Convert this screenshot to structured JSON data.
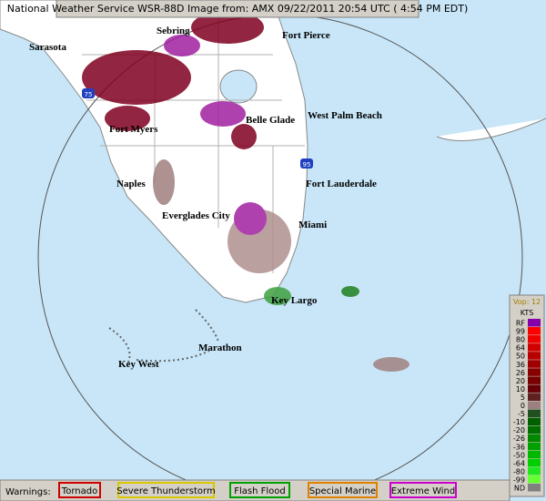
{
  "header": {
    "text": "National Weather Service WSR-88D Image from:  AMX 09/22/2011  20:54 UTC ( 4:54 PM EDT)"
  },
  "map": {
    "cities": [
      "Sarasota",
      "Sebring",
      "Fort Pierce",
      "Fort Myers",
      "Belle Glade",
      "West Palm Beach",
      "Naples",
      "Fort Lauderdale",
      "Everglades City",
      "Miami",
      "Key Largo",
      "Marathon",
      "Key West"
    ],
    "highways": [
      "75",
      "95"
    ]
  },
  "legend": {
    "title": "Vop: 12",
    "unit": "KTS",
    "items": [
      {
        "label": "RF",
        "color": "#8800aa"
      },
      {
        "label": "99",
        "color": "#ff0000"
      },
      {
        "label": "80",
        "color": "#ee0000"
      },
      {
        "label": "64",
        "color": "#d00000"
      },
      {
        "label": "50",
        "color": "#b80000"
      },
      {
        "label": "36",
        "color": "#a00000"
      },
      {
        "label": "26",
        "color": "#880000"
      },
      {
        "label": "20",
        "color": "#780000"
      },
      {
        "label": "10",
        "color": "#680008"
      },
      {
        "label": "5",
        "color": "#602020"
      },
      {
        "label": "0",
        "color": "#9a8080"
      },
      {
        "label": "-5",
        "color": "#205020"
      },
      {
        "label": "-10",
        "color": "#006000"
      },
      {
        "label": "-20",
        "color": "#007000"
      },
      {
        "label": "-26",
        "color": "#008800"
      },
      {
        "label": "-36",
        "color": "#00a000"
      },
      {
        "label": "-50",
        "color": "#00b800"
      },
      {
        "label": "-64",
        "color": "#00d000"
      },
      {
        "label": "-80",
        "color": "#20e820"
      },
      {
        "label": "-99",
        "color": "#66ff33"
      },
      {
        "label": "ND",
        "color": "#808080"
      }
    ]
  },
  "warnings": {
    "label": "Warnings:",
    "items": [
      {
        "label": "Tornado",
        "color": "#cc0000"
      },
      {
        "label": "Severe Thunderstorm",
        "color": "#d8c800"
      },
      {
        "label": "Flash Flood",
        "color": "#00a000"
      },
      {
        "label": "Special Marine",
        "color": "#e08000"
      },
      {
        "label": "Extreme Wind",
        "color": "#cc00cc"
      }
    ]
  }
}
